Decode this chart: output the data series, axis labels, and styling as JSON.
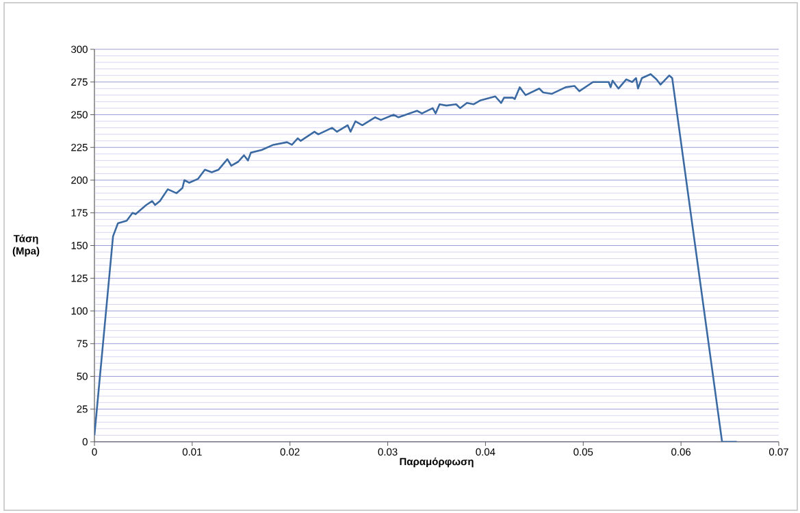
{
  "chart_data": {
    "type": "line",
    "xlabel": "Παραμόρφωση",
    "ylabel": "Τάση (Mpa)",
    "xlim": [
      0,
      0.07
    ],
    "xticks": [
      0,
      0.01,
      0.02,
      0.03,
      0.04,
      0.05,
      0.06,
      0.07
    ],
    "ylim": [
      0,
      300
    ],
    "yticks": [
      0,
      {
        "value": 5,
        "label": null
      },
      {
        "value": 10,
        "label": null
      },
      {
        "value": 15,
        "label": null
      },
      {
        "value": 20,
        "label": null
      },
      25,
      {
        "value": 30,
        "label": null
      },
      {
        "value": 35,
        "label": null
      },
      {
        "value": 40,
        "label": null
      },
      {
        "value": 45,
        "label": null
      },
      50,
      {
        "value": 55,
        "label": null
      },
      {
        "value": 60,
        "label": null
      },
      {
        "value": 65,
        "label": null
      },
      {
        "value": 70,
        "label": null
      },
      75,
      {
        "value": 80,
        "label": null
      },
      {
        "value": 85,
        "label": null
      },
      {
        "value": 90,
        "label": null
      },
      {
        "value": 95,
        "label": null
      },
      100,
      {
        "value": 105,
        "label": null
      },
      {
        "value": 110,
        "label": null
      },
      {
        "value": 115,
        "label": null
      },
      {
        "value": 120,
        "label": null
      },
      125,
      {
        "value": 130,
        "label": null
      },
      {
        "value": 135,
        "label": null
      },
      {
        "value": 140,
        "label": null
      },
      {
        "value": 145,
        "label": null
      },
      150,
      {
        "value": 155,
        "label": null
      },
      {
        "value": 160,
        "label": null
      },
      {
        "value": 165,
        "label": null
      },
      {
        "value": 170,
        "label": null
      },
      175,
      {
        "value": 180,
        "label": null
      },
      {
        "value": 185,
        "label": null
      },
      {
        "value": 190,
        "label": null
      },
      {
        "value": 195,
        "label": null
      },
      200,
      {
        "value": 205,
        "label": null
      },
      {
        "value": 210,
        "label": null
      },
      {
        "value": 215,
        "label": null
      },
      {
        "value": 220,
        "label": null
      },
      225,
      {
        "value": 230,
        "label": null
      },
      {
        "value": 235,
        "label": null
      },
      {
        "value": 240,
        "label": null
      },
      {
        "value": 245,
        "label": null
      },
      250,
      {
        "value": 255,
        "label": null
      },
      {
        "value": 260,
        "label": null
      },
      {
        "value": 265,
        "label": null
      },
      {
        "value": 270,
        "label": null
      },
      275,
      {
        "value": 280,
        "label": null
      },
      {
        "value": 285,
        "label": null
      },
      {
        "value": 290,
        "label": null
      },
      {
        "value": 295,
        "label": null
      },
      300
    ],
    "grid": "y",
    "marker": "none",
    "line_style": "solid",
    "series": [
      {
        "color": "#3b6aa3",
        "x": [
          0,
          0.0019,
          0.0024,
          0.0033,
          0.0039,
          0.0042,
          0.0053,
          0.0059,
          0.0062,
          0.0067,
          0.0075,
          0.0084,
          0.009,
          0.0092,
          0.0097,
          0.0106,
          0.0113,
          0.012,
          0.0127,
          0.0136,
          0.014,
          0.0147,
          0.0153,
          0.0157,
          0.016,
          0.0171,
          0.0183,
          0.0197,
          0.0202,
          0.0208,
          0.0211,
          0.0225,
          0.0229,
          0.0243,
          0.0248,
          0.0259,
          0.0262,
          0.0267,
          0.0274,
          0.0287,
          0.0293,
          0.0306,
          0.0311,
          0.033,
          0.0335,
          0.0346,
          0.0349,
          0.0353,
          0.036,
          0.037,
          0.0374,
          0.0381,
          0.0388,
          0.0395,
          0.041,
          0.0416,
          0.0419,
          0.0428,
          0.043,
          0.0435,
          0.0441,
          0.0455,
          0.0459,
          0.0468,
          0.0482,
          0.0491,
          0.0496,
          0.051,
          0.0526,
          0.0528,
          0.053,
          0.0536,
          0.0544,
          0.055,
          0.0554,
          0.0556,
          0.056,
          0.0569,
          0.0575,
          0.0579,
          0.0588,
          0.0591,
          0.0642,
          0.0657
        ],
        "values": [
          5,
          157,
          167,
          169,
          175,
          174,
          181,
          184,
          181,
          184,
          193,
          190,
          194,
          200,
          198,
          201,
          208,
          206,
          208,
          216,
          211,
          214,
          219,
          215,
          221,
          223,
          227,
          229,
          227,
          232,
          230,
          237,
          235,
          240,
          237,
          242,
          237,
          245,
          242,
          248,
          246,
          250,
          248,
          253,
          251,
          255,
          251,
          258,
          257,
          258,
          255,
          259,
          258,
          261,
          264,
          259,
          263,
          263,
          262,
          271,
          265,
          270,
          267,
          266,
          271,
          272,
          268,
          275,
          275,
          271,
          276,
          270,
          277,
          275,
          278,
          270,
          278,
          281,
          277,
          273,
          280,
          278,
          0,
          0
        ]
      }
    ]
  }
}
